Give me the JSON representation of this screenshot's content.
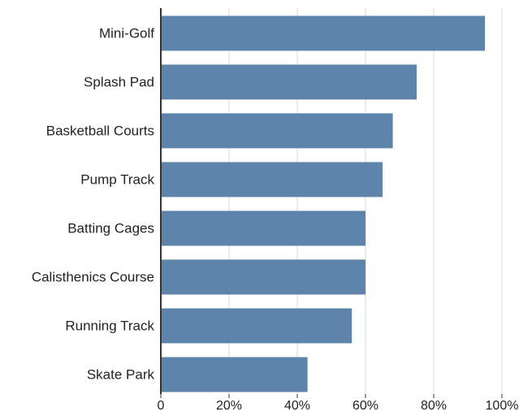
{
  "chart_data": {
    "type": "bar",
    "orientation": "horizontal",
    "categories": [
      "Mini-Golf",
      "Splash Pad",
      "Basketball Courts",
      "Pump Track",
      "Batting Cages",
      "Calisthenics Course",
      "Running Track",
      "Skate Park"
    ],
    "values": [
      95,
      75,
      68,
      65,
      60,
      60,
      56,
      43
    ],
    "xlim": [
      0,
      100
    ],
    "x_ticks": [
      0,
      20,
      40,
      60,
      80,
      100
    ],
    "x_tick_labels": [
      "0",
      "20%",
      "40%",
      "60%",
      "80%",
      "100%"
    ],
    "grid": "vertical",
    "title": "",
    "xlabel": "",
    "ylabel": "",
    "bar_color": "#5f84ac",
    "grid_color": "#d9d9d9",
    "axis_color": "#333333"
  }
}
